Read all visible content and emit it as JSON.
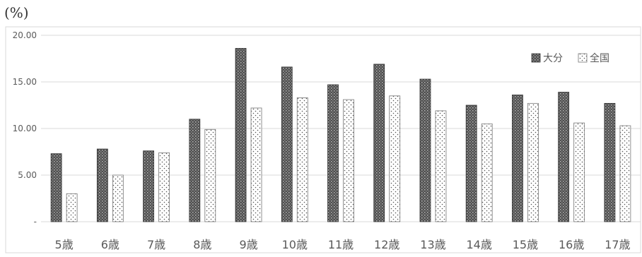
{
  "unit_label": "(%)",
  "chart_data": {
    "type": "bar",
    "categories": [
      "5歳",
      "6歳",
      "7歳",
      "8歳",
      "9歳",
      "10歳",
      "11歳",
      "12歳",
      "13歳",
      "14歳",
      "15歳",
      "16歳",
      "17歳"
    ],
    "series": [
      {
        "name": "大分",
        "values": [
          7.3,
          7.8,
          7.6,
          11.0,
          18.6,
          16.6,
          14.7,
          16.9,
          15.3,
          12.5,
          13.6,
          13.9,
          12.7
        ],
        "color": "#5a5a5a",
        "pattern": "dark-dotted"
      },
      {
        "name": "全国",
        "values": [
          3.0,
          5.0,
          7.4,
          9.9,
          12.2,
          13.3,
          13.1,
          13.5,
          11.9,
          10.5,
          12.7,
          10.6,
          10.3
        ],
        "color": "#ffffff",
        "pattern": "light-dotted"
      }
    ],
    "yticks": [
      "20.00",
      "15.00",
      "10.00",
      "5.00",
      "-"
    ],
    "ylim": [
      0,
      20
    ],
    "grid": true,
    "legend_position": "top-right"
  }
}
